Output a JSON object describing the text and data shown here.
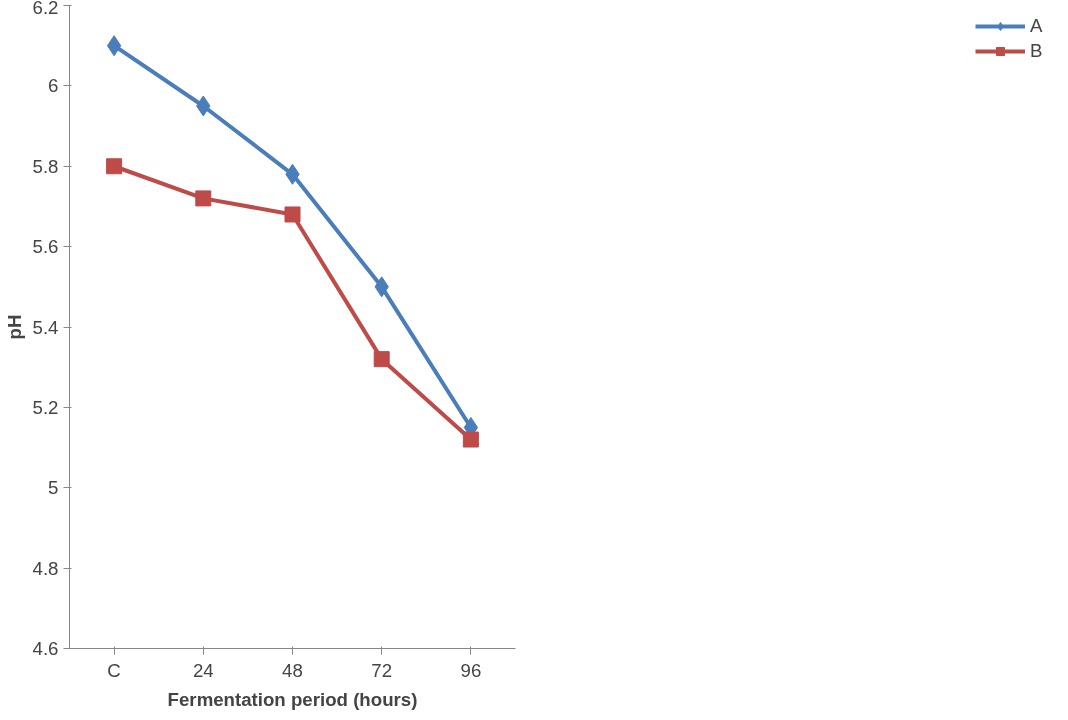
{
  "chart_data": {
    "type": "line",
    "xlabel": "Fermentation period (hours)",
    "ylabel": "pH",
    "categories": [
      "C",
      "24",
      "48",
      "72",
      "96"
    ],
    "ylim": [
      4.6,
      6.2
    ],
    "yticks": [
      {
        "value": 4.6,
        "label": "4.6"
      },
      {
        "value": 4.8,
        "label": "4.8"
      },
      {
        "value": 5,
        "label": "5"
      },
      {
        "value": 5.2,
        "label": "5.2"
      },
      {
        "value": 5.4,
        "label": "5.4"
      },
      {
        "value": 5.6,
        "label": "5.6"
      },
      {
        "value": 5.8,
        "label": "5.8"
      },
      {
        "value": 6,
        "label": "6"
      },
      {
        "value": 6.2,
        "label": "6.2"
      }
    ],
    "grid": false,
    "legend": "right",
    "line_style": "solid",
    "series": [
      {
        "name": "A",
        "color": "#4a7ebb",
        "marker": "diamond",
        "values": [
          6.1,
          5.95,
          5.78,
          5.5,
          5.15
        ]
      },
      {
        "name": "B",
        "color": "#be4b48",
        "marker": "square",
        "values": [
          5.8,
          5.72,
          5.68,
          5.32,
          5.12
        ]
      }
    ]
  }
}
